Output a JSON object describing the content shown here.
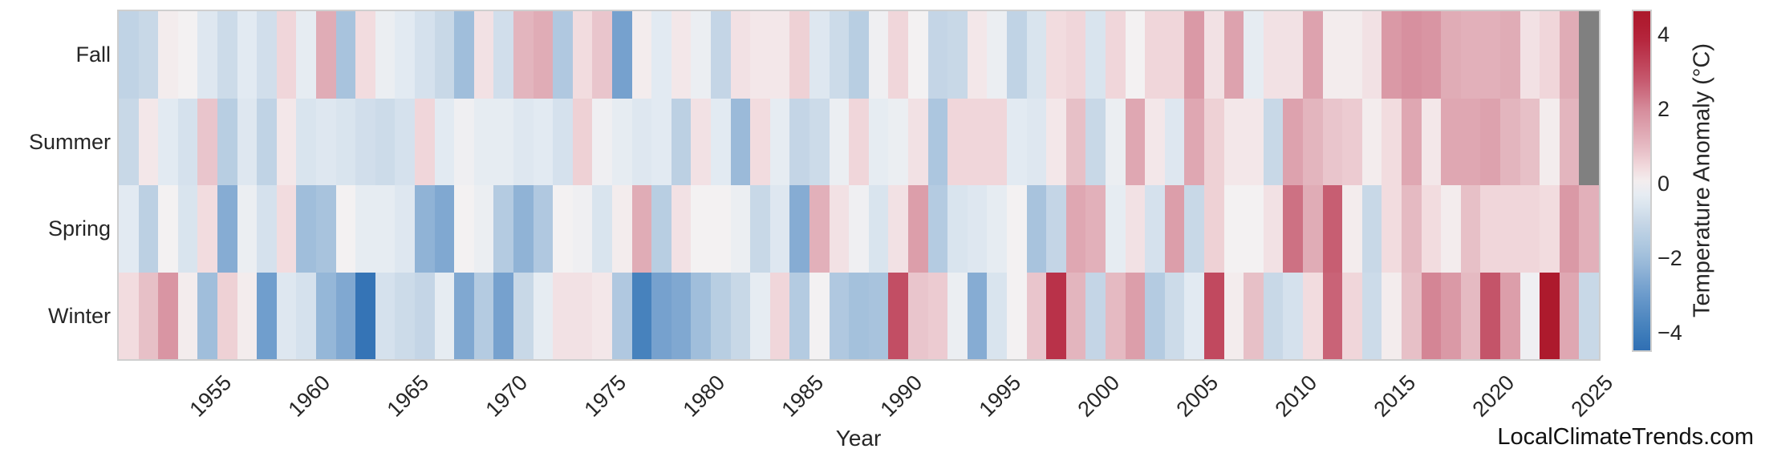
{
  "figure": {
    "background": "#ffffff"
  },
  "axes": {
    "x_label": "Year",
    "x_tick_labels": [
      "1955",
      "1960",
      "1965",
      "1970",
      "1975",
      "1980",
      "1985",
      "1990",
      "1995",
      "2000",
      "2005",
      "2010",
      "2015",
      "2020",
      "2025"
    ],
    "x_tick_years": [
      1955,
      1960,
      1965,
      1970,
      1975,
      1980,
      1985,
      1990,
      1995,
      2000,
      2005,
      2010,
      2015,
      2020,
      2025
    ],
    "row_labels": [
      "Fall",
      "Summer",
      "Spring",
      "Winter"
    ]
  },
  "colorbar": {
    "label": "Temperature Anomaly (°C)",
    "tick_labels": [
      "4",
      "2",
      "0",
      "−2",
      "−4"
    ],
    "tick_values": [
      4,
      2,
      0,
      -2,
      -4
    ],
    "vmax": 4.62,
    "vmin": -4.47
  },
  "watermark": "LocalClimateTrends.com",
  "chart_data": {
    "type": "heatmap",
    "title": "",
    "xlabel": "Year",
    "legend": "Temperature Anomaly (°C)",
    "x": [
      1950,
      1951,
      1952,
      1953,
      1954,
      1955,
      1956,
      1957,
      1958,
      1959,
      1960,
      1961,
      1962,
      1963,
      1964,
      1965,
      1966,
      1967,
      1968,
      1969,
      1970,
      1971,
      1972,
      1973,
      1974,
      1975,
      1976,
      1977,
      1978,
      1979,
      1980,
      1981,
      1982,
      1983,
      1984,
      1985,
      1986,
      1987,
      1988,
      1989,
      1990,
      1991,
      1992,
      1993,
      1994,
      1995,
      1996,
      1997,
      1998,
      1999,
      2000,
      2001,
      2002,
      2003,
      2004,
      2005,
      2006,
      2007,
      2008,
      2009,
      2010,
      2011,
      2012,
      2013,
      2014,
      2015,
      2016,
      2017,
      2018,
      2019,
      2020,
      2021,
      2022,
      2023,
      2024
    ],
    "rows": [
      "Fall",
      "Summer",
      "Spring",
      "Winter"
    ],
    "series": [
      {
        "name": "Fall",
        "values": [
          -1.2,
          -1.0,
          0.1,
          0.0,
          -0.5,
          -0.9,
          -0.4,
          -0.8,
          0.5,
          -0.3,
          1.3,
          -1.8,
          0.4,
          -0.2,
          -0.4,
          -0.7,
          -1.0,
          -2.0,
          0.3,
          -0.8,
          1.1,
          1.3,
          -1.6,
          0.4,
          0.8,
          -2.8,
          0.1,
          -0.4,
          0.2,
          -0.2,
          -1.1,
          0.3,
          0.2,
          0.2,
          0.6,
          -0.5,
          -0.9,
          -1.4,
          -0.1,
          0.5,
          0.0,
          -1.1,
          -1.0,
          0.2,
          -0.2,
          -1.2,
          -0.6,
          0.4,
          0.5,
          -0.6,
          0.5,
          0.0,
          0.5,
          0.5,
          1.7,
          0.3,
          1.5,
          -0.3,
          0.3,
          0.3,
          1.5,
          0.1,
          0.1,
          0.3,
          1.7,
          1.9,
          1.8,
          1.3,
          1.2,
          1.2,
          1.3,
          0.3,
          0.5,
          1.3,
          null
        ]
      },
      {
        "name": "Summer",
        "values": [
          -1.0,
          0.2,
          -0.4,
          -0.7,
          0.8,
          -1.4,
          -0.5,
          -1.2,
          0.2,
          -0.6,
          -0.5,
          -0.6,
          -0.8,
          -0.9,
          -0.7,
          0.5,
          -0.4,
          -0.1,
          -0.3,
          -0.3,
          -0.5,
          -0.4,
          -0.7,
          0.6,
          -0.1,
          -0.3,
          -0.5,
          -0.4,
          -1.3,
          0.3,
          -0.4,
          -2.1,
          0.4,
          -0.3,
          -1.1,
          -0.9,
          -0.2,
          0.5,
          -0.3,
          -0.2,
          0.3,
          -1.7,
          0.5,
          0.5,
          0.5,
          -0.4,
          -0.5,
          0.2,
          0.9,
          -1.0,
          -0.2,
          1.4,
          0.2,
          -0.5,
          1.4,
          0.6,
          0.2,
          0.2,
          -1.0,
          1.5,
          1.1,
          0.8,
          0.7,
          0.1,
          0.4,
          1.4,
          0.2,
          1.4,
          1.4,
          1.5,
          1.1,
          0.9,
          0.1,
          1.1,
          null
        ]
      },
      {
        "name": "Spring",
        "values": [
          -0.4,
          -1.3,
          0.0,
          -0.6,
          0.4,
          -2.5,
          -0.2,
          -0.7,
          0.4,
          -2.0,
          -1.8,
          0.0,
          -0.3,
          -0.3,
          -0.5,
          -2.3,
          -2.6,
          0.0,
          -0.2,
          -1.5,
          -2.3,
          -1.6,
          0.0,
          -0.1,
          -0.6,
          0.1,
          1.3,
          -1.4,
          0.3,
          0.0,
          0.0,
          -0.2,
          -1.0,
          -0.5,
          -2.5,
          1.2,
          0.3,
          -0.1,
          -0.6,
          0.3,
          1.6,
          -1.5,
          -0.6,
          -0.5,
          -0.3,
          0.0,
          -1.8,
          -1.1,
          1.4,
          1.2,
          -0.3,
          0.3,
          -0.7,
          1.6,
          -1.0,
          0.6,
          0.0,
          0.0,
          0.3,
          2.4,
          1.3,
          2.7,
          0.1,
          -1.0,
          0.4,
          1.0,
          0.4,
          0.1,
          0.9,
          0.5,
          0.5,
          0.5,
          0.4,
          1.7,
          1.2
        ]
      },
      {
        "name": "Winter",
        "values": [
          0.4,
          0.9,
          1.8,
          0.1,
          -2.0,
          0.6,
          0.1,
          -2.9,
          -0.5,
          -0.7,
          -2.2,
          -2.6,
          -4.3,
          -0.7,
          -0.9,
          -1.1,
          -0.3,
          -2.6,
          -1.5,
          -2.8,
          -1.0,
          -0.3,
          0.3,
          0.3,
          0.2,
          -1.6,
          -3.8,
          -2.8,
          -2.6,
          -2.0,
          -1.4,
          -1.0,
          -0.3,
          0.5,
          -1.5,
          0.0,
          -1.6,
          -1.9,
          -1.8,
          3.0,
          0.8,
          0.7,
          -0.2,
          -2.5,
          -0.6,
          0.0,
          0.8,
          3.6,
          1.1,
          -1.1,
          1.0,
          1.6,
          -1.5,
          -0.9,
          -0.4,
          3.1,
          0.1,
          0.9,
          -1.0,
          -0.7,
          0.4,
          2.6,
          0.5,
          -0.9,
          0.1,
          0.9,
          2.1,
          1.7,
          1.0,
          2.9,
          1.6,
          -0.1,
          4.5,
          1.4,
          -1.0
        ]
      }
    ],
    "missing_color": "#808080",
    "colormap": {
      "style": "diverging blue-white-red (RdBu_r-like)",
      "vmin": -4.47,
      "vmax": 4.62,
      "anchors": [
        [
          -4.6,
          "#2c6cb1"
        ],
        [
          -4.0,
          "#3e7cba"
        ],
        [
          -3.0,
          "#6b9acb"
        ],
        [
          -2.0,
          "#a0bedb"
        ],
        [
          -1.0,
          "#c8d8e7"
        ],
        [
          -0.4,
          "#e2eaf2"
        ],
        [
          0.0,
          "#f3f1f2"
        ],
        [
          0.4,
          "#f2dcdf"
        ],
        [
          1.0,
          "#e5bac2"
        ],
        [
          1.5,
          "#dda2ae"
        ],
        [
          2.0,
          "#d68c9b"
        ],
        [
          2.6,
          "#c96377"
        ],
        [
          3.2,
          "#bf445a"
        ],
        [
          4.0,
          "#b32037"
        ],
        [
          4.62,
          "#ac192b"
        ]
      ]
    }
  }
}
